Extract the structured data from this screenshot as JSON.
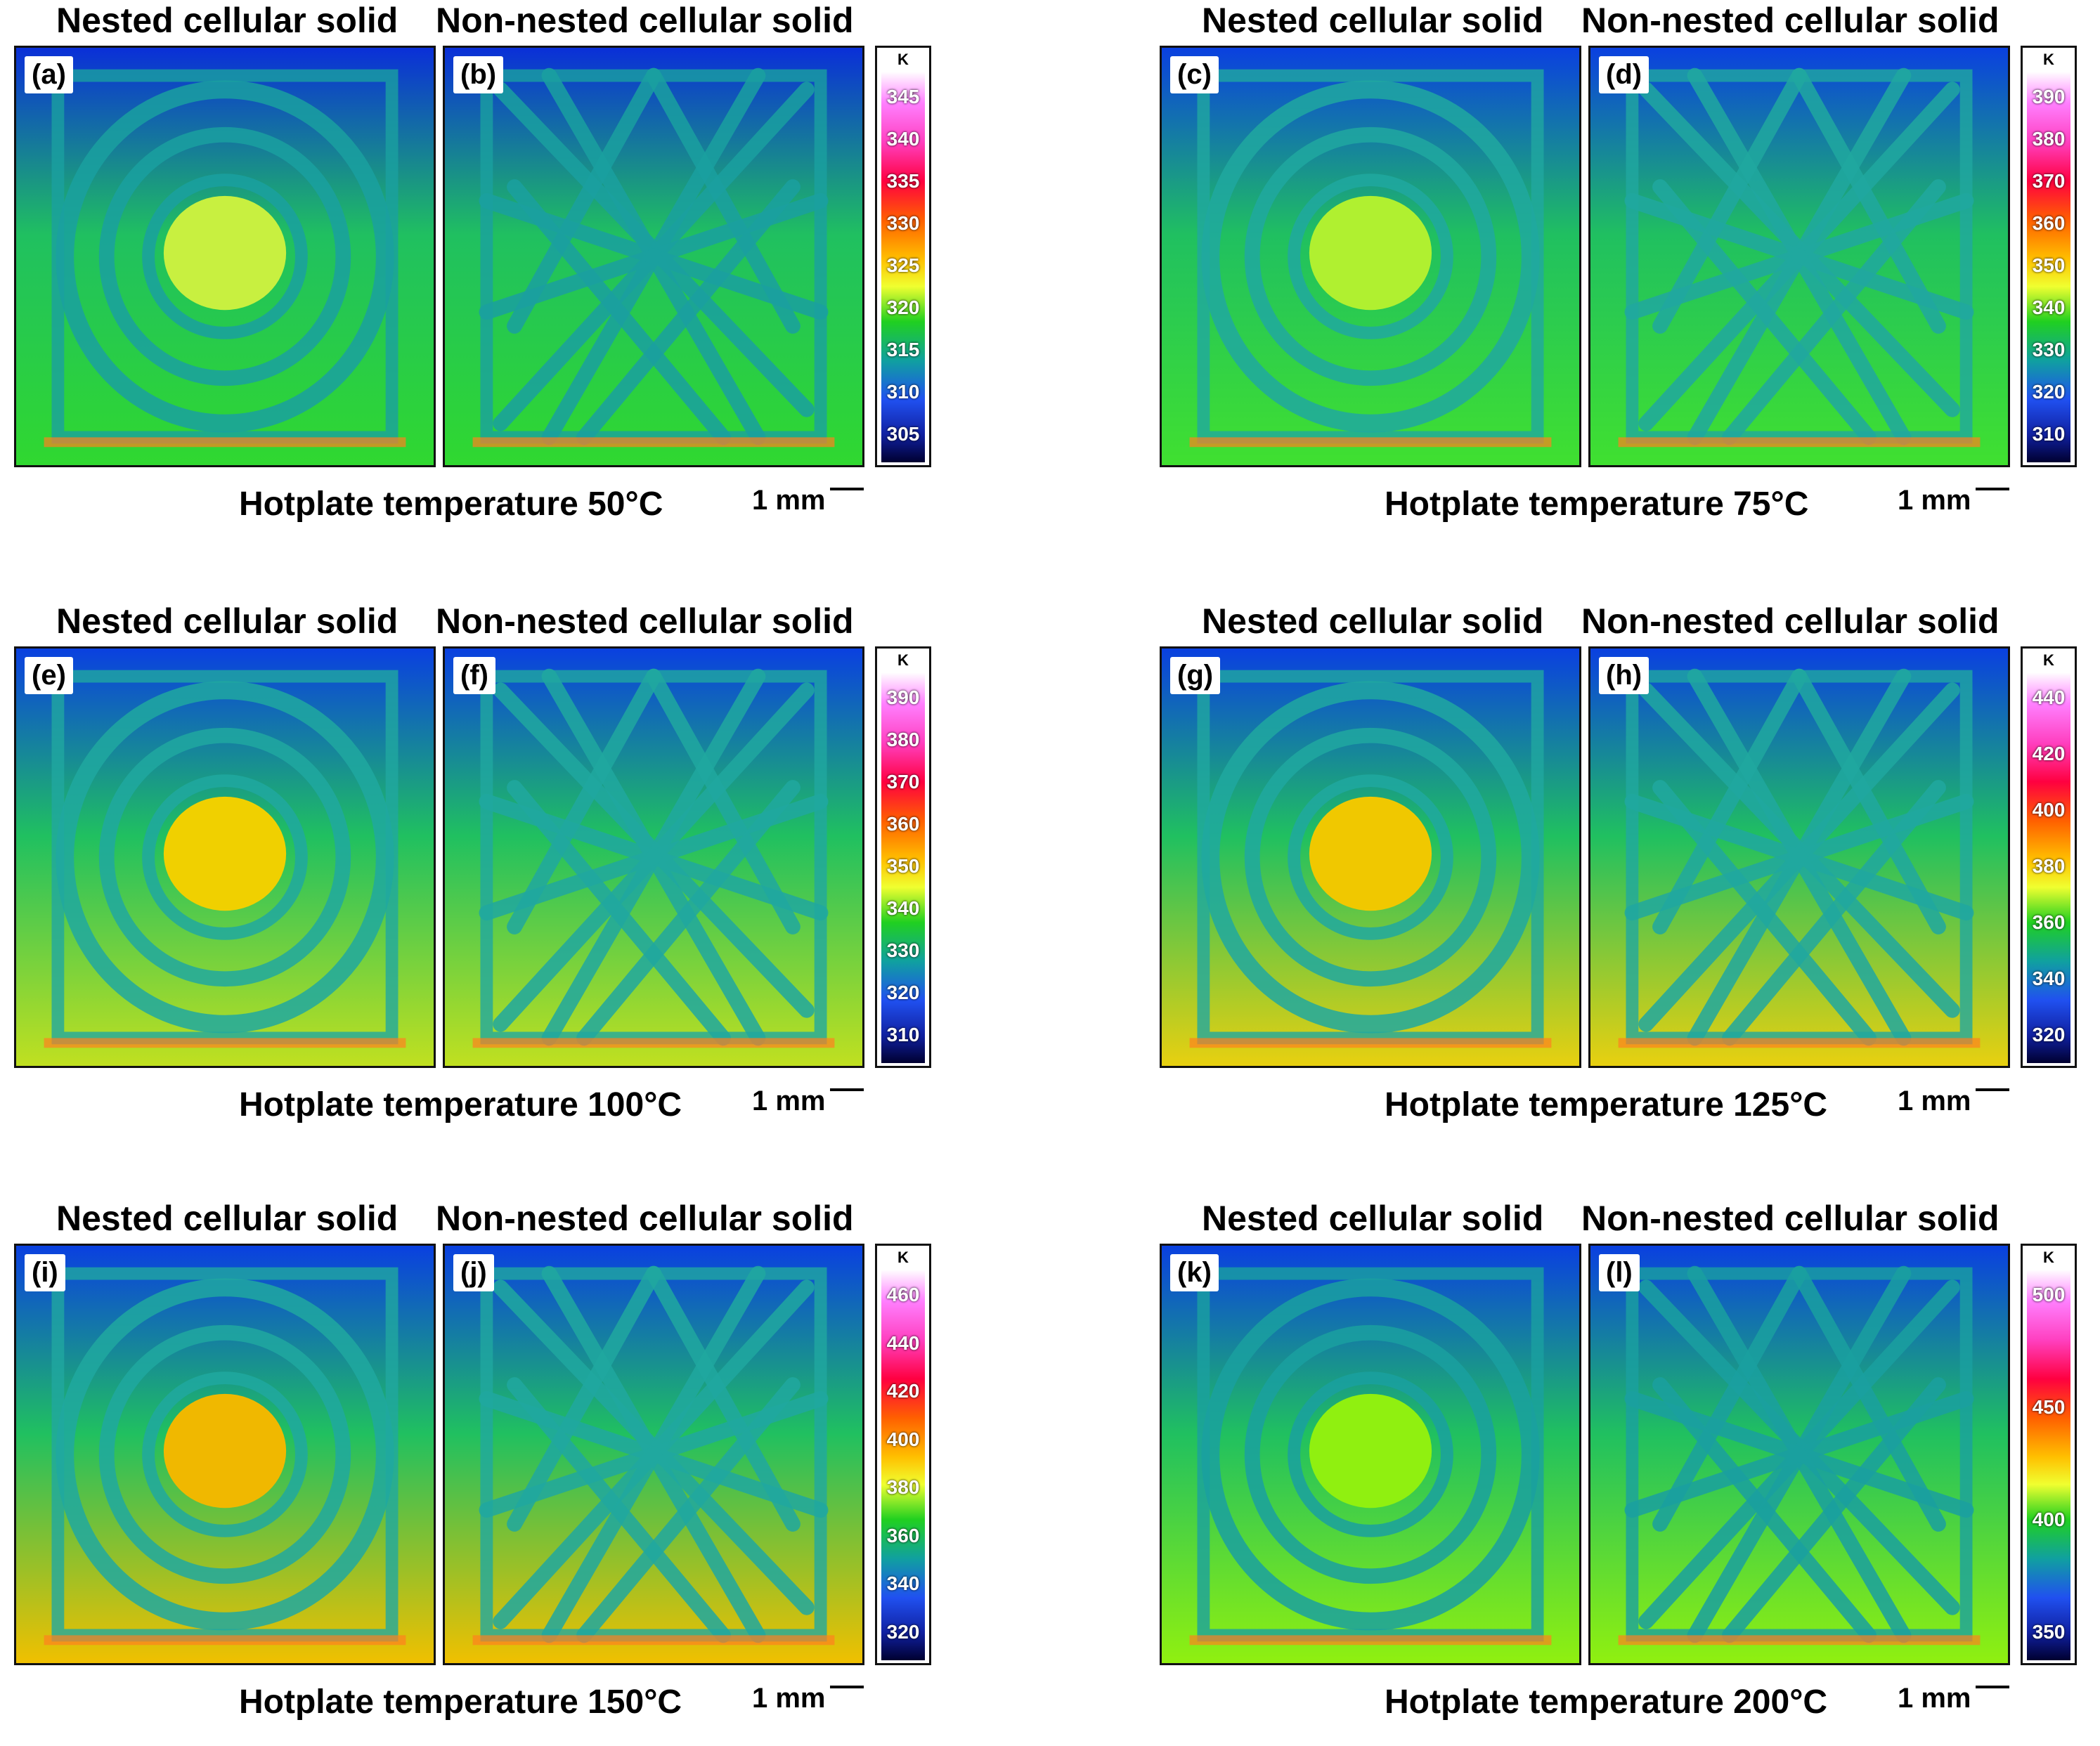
{
  "figure": {
    "groups": [
      {
        "left_title": "Nested cellular solid",
        "right_title": "Non-nested cellular solid",
        "left_label": "(a)",
        "right_label": "(b)",
        "caption": "Hotplate temperature 50°C",
        "unit": "K",
        "ticks": [
          "345",
          "340",
          "335",
          "330",
          "325",
          "320",
          "315",
          "310",
          "305"
        ],
        "scale": "1 mm",
        "palette": {
          "bg_top": "#0a2fd8",
          "bg_bottom": "#30d830",
          "core": "#c8f040",
          "strut": "#1aa0a0"
        }
      },
      {
        "left_title": "Nested cellular solid",
        "right_title": "Non-nested cellular solid",
        "left_label": "(c)",
        "right_label": "(d)",
        "caption": "Hotplate temperature 75°C",
        "unit": "K",
        "ticks": [
          "390",
          "380",
          "370",
          "360",
          "350",
          "340",
          "330",
          "320",
          "310"
        ],
        "scale": "1 mm",
        "palette": {
          "bg_top": "#0a40e0",
          "bg_bottom": "#40e030",
          "core": "#b0f030",
          "strut": "#20a8a0"
        }
      },
      {
        "left_title": "Nested cellular solid",
        "right_title": "Non-nested cellular solid",
        "left_label": "(e)",
        "right_label": "(f)",
        "caption": "Hotplate temperature 100°C",
        "unit": "K",
        "ticks": [
          "390",
          "380",
          "370",
          "360",
          "350",
          "340",
          "330",
          "320",
          "310"
        ],
        "scale": "1 mm",
        "palette": {
          "bg_top": "#0a40e0",
          "bg_bottom": "#c0e020",
          "core": "#f0d000",
          "strut": "#20a8a0"
        }
      },
      {
        "left_title": "Nested cellular solid",
        "right_title": "Non-nested cellular solid",
        "left_label": "(g)",
        "right_label": "(h)",
        "caption": "Hotplate temperature 125°C",
        "unit": "K",
        "ticks": [
          "440",
          "420",
          "400",
          "380",
          "360",
          "340",
          "320"
        ],
        "scale": "1 mm",
        "palette": {
          "bg_top": "#0a40e0",
          "bg_bottom": "#e8d010",
          "core": "#f0c800",
          "strut": "#20a8a0"
        }
      },
      {
        "left_title": "Nested cellular solid",
        "right_title": "Non-nested cellular solid",
        "left_label": "(i)",
        "right_label": "(j)",
        "caption": "Hotplate temperature 150°C",
        "unit": "K",
        "ticks": [
          "460",
          "440",
          "420",
          "400",
          "380",
          "360",
          "340",
          "320"
        ],
        "scale": "1 mm",
        "palette": {
          "bg_top": "#0a40e0",
          "bg_bottom": "#f0c000",
          "core": "#f0b800",
          "strut": "#20a8a0"
        }
      },
      {
        "left_title": "Nested cellular solid",
        "right_title": "Non-nested cellular solid",
        "left_label": "(k)",
        "right_label": "(l)",
        "caption": "Hotplate temperature 200°C",
        "unit": "K",
        "ticks": [
          "500",
          "450",
          "400",
          "350"
        ],
        "scale": "1 mm",
        "palette": {
          "bg_top": "#0a40e0",
          "bg_bottom": "#90f010",
          "core": "#90f010",
          "strut": "#1aa0a0"
        }
      }
    ]
  }
}
